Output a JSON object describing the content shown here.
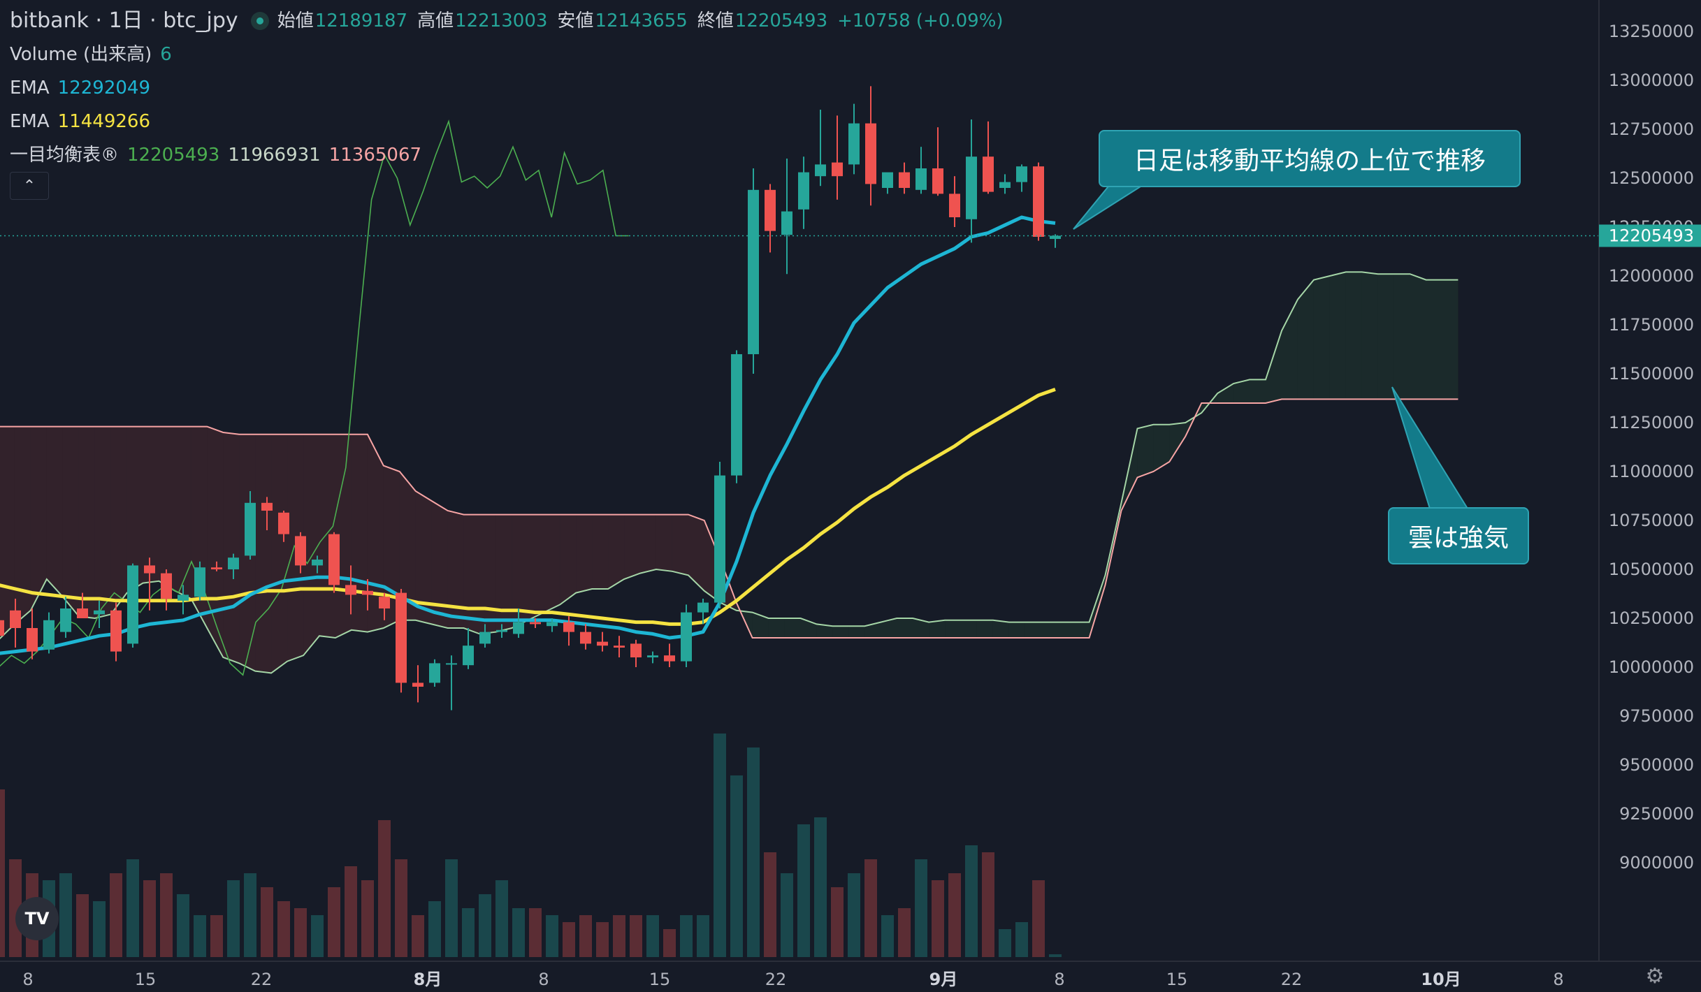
{
  "header": {
    "symbol": "bitbank · 1日 · btc_jpy",
    "open_label": "始値",
    "open": "12189187",
    "high_label": "高値",
    "high": "12213003",
    "low_label": "安値",
    "low": "12143655",
    "close_label": "終値",
    "close": "12205493",
    "change": "+10758 (+0.09%)"
  },
  "indicators": {
    "volume_label": "Volume (出来高)",
    "volume_value": "6",
    "ema1_label": "EMA",
    "ema1_value": "12292049",
    "ema2_label": "EMA",
    "ema2_value": "11449266",
    "ichimoku_label": "一目均衡表®",
    "ichimoku_v1": "12205493",
    "ichimoku_v2": "11966931",
    "ichimoku_v3": "11365067",
    "collapse_icon": "chevron-up-icon"
  },
  "annotations": {
    "callout1": "日足は移動平均線の上位で推移",
    "callout2": "雲は強気"
  },
  "logo_text": "TV",
  "colors": {
    "background": "#161b27",
    "up": "#26a69a",
    "down": "#ef5350",
    "ema_fast": "#1eb6d4",
    "ema_slow": "#f5e342",
    "lagging_span": "#4caf50",
    "leading_a": "#a5d6a7",
    "leading_b": "#f8a5a5",
    "callout": "#137b8a"
  },
  "chart_data": {
    "type": "candlestick",
    "y_range": [
      8850000,
      13350000
    ],
    "y_ticks": [
      "13250000",
      "13000000",
      "12750000",
      "12500000",
      "12250000",
      "12000000",
      "11750000",
      "11500000",
      "11250000",
      "11000000",
      "10750000",
      "10500000",
      "10250000",
      "10000000",
      "9750000",
      "9500000",
      "9250000",
      "9000000"
    ],
    "last_price_label": "12205493",
    "last_price": 12205493,
    "x_labels": [
      "8",
      "15",
      "22",
      "8月",
      "8",
      "15",
      "22",
      "9月",
      "8",
      "15",
      "22",
      "10月",
      "8"
    ],
    "candles": [
      {
        "o": 10240000,
        "h": 10280000,
        "l": 10140000,
        "c": 10160000
      },
      {
        "o": 10290000,
        "h": 10350000,
        "l": 10100000,
        "c": 10200000
      },
      {
        "o": 10200000,
        "h": 10300000,
        "l": 10040000,
        "c": 10080000
      },
      {
        "o": 10090000,
        "h": 10280000,
        "l": 10070000,
        "c": 10240000
      },
      {
        "o": 10180000,
        "h": 10360000,
        "l": 10150000,
        "c": 10300000
      },
      {
        "o": 10300000,
        "h": 10380000,
        "l": 10250000,
        "c": 10250000
      },
      {
        "o": 10270000,
        "h": 10340000,
        "l": 10200000,
        "c": 10290000
      },
      {
        "o": 10290000,
        "h": 10330000,
        "l": 10030000,
        "c": 10080000
      },
      {
        "o": 10120000,
        "h": 10530000,
        "l": 10100000,
        "c": 10520000
      },
      {
        "o": 10520000,
        "h": 10560000,
        "l": 10290000,
        "c": 10480000
      },
      {
        "o": 10480000,
        "h": 10500000,
        "l": 10290000,
        "c": 10350000
      },
      {
        "o": 10340000,
        "h": 10420000,
        "l": 10270000,
        "c": 10370000
      },
      {
        "o": 10360000,
        "h": 10540000,
        "l": 10340000,
        "c": 10510000
      },
      {
        "o": 10510000,
        "h": 10540000,
        "l": 10490000,
        "c": 10500000
      },
      {
        "o": 10500000,
        "h": 10580000,
        "l": 10450000,
        "c": 10560000
      },
      {
        "o": 10570000,
        "h": 10900000,
        "l": 10550000,
        "c": 10840000
      },
      {
        "o": 10840000,
        "h": 10870000,
        "l": 10700000,
        "c": 10800000
      },
      {
        "o": 10790000,
        "h": 10800000,
        "l": 10640000,
        "c": 10680000
      },
      {
        "o": 10670000,
        "h": 10690000,
        "l": 10480000,
        "c": 10520000
      },
      {
        "o": 10520000,
        "h": 10570000,
        "l": 10480000,
        "c": 10550000
      },
      {
        "o": 10680000,
        "h": 10690000,
        "l": 10380000,
        "c": 10420000
      },
      {
        "o": 10420000,
        "h": 10520000,
        "l": 10270000,
        "c": 10370000
      },
      {
        "o": 10390000,
        "h": 10450000,
        "l": 10290000,
        "c": 10370000
      },
      {
        "o": 10360000,
        "h": 10380000,
        "l": 10240000,
        "c": 10300000
      },
      {
        "o": 10380000,
        "h": 10400000,
        "l": 9870000,
        "c": 9920000
      },
      {
        "o": 9920000,
        "h": 10010000,
        "l": 9820000,
        "c": 9900000
      },
      {
        "o": 9920000,
        "h": 10040000,
        "l": 9900000,
        "c": 10020000
      },
      {
        "o": 10020000,
        "h": 10060000,
        "l": 9780000,
        "c": 10020000
      },
      {
        "o": 10010000,
        "h": 10200000,
        "l": 9990000,
        "c": 10110000
      },
      {
        "o": 10120000,
        "h": 10220000,
        "l": 10100000,
        "c": 10180000
      },
      {
        "o": 10180000,
        "h": 10220000,
        "l": 10150000,
        "c": 10190000
      },
      {
        "o": 10170000,
        "h": 10300000,
        "l": 10150000,
        "c": 10230000
      },
      {
        "o": 10230000,
        "h": 10250000,
        "l": 10200000,
        "c": 10220000
      },
      {
        "o": 10210000,
        "h": 10250000,
        "l": 10180000,
        "c": 10230000
      },
      {
        "o": 10230000,
        "h": 10260000,
        "l": 10110000,
        "c": 10180000
      },
      {
        "o": 10180000,
        "h": 10220000,
        "l": 10090000,
        "c": 10120000
      },
      {
        "o": 10130000,
        "h": 10180000,
        "l": 10080000,
        "c": 10110000
      },
      {
        "o": 10110000,
        "h": 10160000,
        "l": 10050000,
        "c": 10100000
      },
      {
        "o": 10120000,
        "h": 10140000,
        "l": 10000000,
        "c": 10050000
      },
      {
        "o": 10050000,
        "h": 10080000,
        "l": 10020000,
        "c": 10060000
      },
      {
        "o": 10060000,
        "h": 10120000,
        "l": 10000000,
        "c": 10030000
      },
      {
        "o": 10030000,
        "h": 10320000,
        "l": 10000000,
        "c": 10280000
      },
      {
        "o": 10280000,
        "h": 10350000,
        "l": 10220000,
        "c": 10330000
      },
      {
        "o": 10330000,
        "h": 11050000,
        "l": 10300000,
        "c": 10980000
      },
      {
        "o": 10980000,
        "h": 11620000,
        "l": 10940000,
        "c": 11600000
      },
      {
        "o": 11600000,
        "h": 12550000,
        "l": 11500000,
        "c": 12440000
      },
      {
        "o": 12440000,
        "h": 12470000,
        "l": 12120000,
        "c": 12230000
      },
      {
        "o": 12210000,
        "h": 12600000,
        "l": 12010000,
        "c": 12330000
      },
      {
        "o": 12340000,
        "h": 12610000,
        "l": 12240000,
        "c": 12530000
      },
      {
        "o": 12510000,
        "h": 12850000,
        "l": 12460000,
        "c": 12570000
      },
      {
        "o": 12580000,
        "h": 12820000,
        "l": 12390000,
        "c": 12510000
      },
      {
        "o": 12570000,
        "h": 12880000,
        "l": 12520000,
        "c": 12780000
      },
      {
        "o": 12780000,
        "h": 12970000,
        "l": 12360000,
        "c": 12470000
      },
      {
        "o": 12450000,
        "h": 12520000,
        "l": 12420000,
        "c": 12530000
      },
      {
        "o": 12530000,
        "h": 12580000,
        "l": 12420000,
        "c": 12450000
      },
      {
        "o": 12440000,
        "h": 12660000,
        "l": 12420000,
        "c": 12550000
      },
      {
        "o": 12550000,
        "h": 12760000,
        "l": 12410000,
        "c": 12420000
      },
      {
        "o": 12420000,
        "h": 12510000,
        "l": 12250000,
        "c": 12300000
      },
      {
        "o": 12290000,
        "h": 12800000,
        "l": 12170000,
        "c": 12610000
      },
      {
        "o": 12610000,
        "h": 12790000,
        "l": 12420000,
        "c": 12430000
      },
      {
        "o": 12450000,
        "h": 12520000,
        "l": 12420000,
        "c": 12480000
      },
      {
        "o": 12480000,
        "h": 12570000,
        "l": 12430000,
        "c": 12560000
      },
      {
        "o": 12560000,
        "h": 12580000,
        "l": 12180000,
        "c": 12200000
      },
      {
        "o": 12189187,
        "h": 12213003,
        "l": 12143655,
        "c": 12205493
      }
    ],
    "volumes": [
      1.2,
      0.7,
      0.6,
      0.55,
      0.6,
      0.45,
      0.4,
      0.6,
      0.7,
      0.55,
      0.6,
      0.45,
      0.3,
      0.3,
      0.55,
      0.6,
      0.5,
      0.4,
      0.35,
      0.3,
      0.5,
      0.65,
      0.55,
      0.98,
      0.7,
      0.3,
      0.4,
      0.7,
      0.35,
      0.45,
      0.55,
      0.35,
      0.35,
      0.3,
      0.25,
      0.3,
      0.25,
      0.3,
      0.3,
      0.3,
      0.2,
      0.3,
      0.3,
      1.6,
      1.3,
      1.5,
      0.75,
      0.6,
      0.95,
      1.0,
      0.5,
      0.6,
      0.7,
      0.3,
      0.35,
      0.7,
      0.55,
      0.6,
      0.8,
      0.75,
      0.2,
      0.25,
      0.55,
      0.02
    ],
    "ema_fast": [
      10070000,
      10080000,
      10090000,
      10100000,
      10120000,
      10140000,
      10160000,
      10170000,
      10200000,
      10220000,
      10230000,
      10240000,
      10270000,
      10290000,
      10310000,
      10370000,
      10410000,
      10440000,
      10450000,
      10460000,
      10460000,
      10450000,
      10430000,
      10410000,
      10360000,
      10310000,
      10280000,
      10260000,
      10250000,
      10240000,
      10240000,
      10240000,
      10240000,
      10240000,
      10230000,
      10220000,
      10210000,
      10200000,
      10180000,
      10170000,
      10150000,
      10160000,
      10180000,
      10330000,
      10540000,
      10790000,
      10980000,
      11140000,
      11310000,
      11470000,
      11600000,
      11760000,
      11850000,
      11940000,
      12000000,
      12060000,
      12100000,
      12140000,
      12200000,
      12220000,
      12260000,
      12300000,
      12280000,
      12270000
    ],
    "ema_slow": [
      10420000,
      10400000,
      10380000,
      10370000,
      10360000,
      10350000,
      10350000,
      10340000,
      10340000,
      10340000,
      10340000,
      10340000,
      10350000,
      10350000,
      10360000,
      10380000,
      10390000,
      10390000,
      10400000,
      10400000,
      10400000,
      10390000,
      10380000,
      10370000,
      10350000,
      10330000,
      10320000,
      10310000,
      10300000,
      10300000,
      10290000,
      10290000,
      10280000,
      10280000,
      10270000,
      10260000,
      10250000,
      10240000,
      10230000,
      10230000,
      10220000,
      10220000,
      10230000,
      10280000,
      10340000,
      10410000,
      10480000,
      10550000,
      10610000,
      10680000,
      10740000,
      10810000,
      10870000,
      10920000,
      10980000,
      11030000,
      11080000,
      11130000,
      11190000,
      11240000,
      11290000,
      11340000,
      11390000,
      11420000
    ],
    "lagging_span": [
      10000000,
      10060000,
      10020000,
      10080000,
      10160000,
      10250000,
      10220000,
      10150000,
      10300000,
      10380000,
      10330000,
      10280000,
      10370000,
      10420000,
      10380000,
      10540000,
      10390000,
      10200000,
      10020000,
      9960000,
      10230000,
      10300000,
      10400000,
      10620000,
      10530000,
      10640000,
      10720000,
      11020000,
      11720000,
      12390000,
      12620000,
      12500000,
      12260000,
      12430000,
      12620000,
      12790000,
      12480000,
      12510000,
      12450000,
      12510000,
      12660000,
      12490000,
      12540000,
      12300000,
      12630000,
      12470000,
      12490000,
      12540000,
      12205493,
      12205493
    ],
    "leading_a": [
      10140000,
      10220000,
      10290000,
      10450000,
      10360000,
      10260000,
      10250000,
      10270000,
      10380000,
      10430000,
      10440000,
      10390000,
      10350000,
      10200000,
      10050000,
      10020000,
      9980000,
      9970000,
      10030000,
      10060000,
      10160000,
      10150000,
      10190000,
      10180000,
      10200000,
      10240000,
      10240000,
      10220000,
      10200000,
      10200000,
      10170000,
      10180000,
      10200000,
      10240000,
      10280000,
      10320000,
      10380000,
      10400000,
      10400000,
      10450000,
      10480000,
      10500000,
      10490000,
      10470000,
      10390000,
      10330000,
      10290000,
      10280000,
      10250000,
      10250000,
      10250000,
      10220000,
      10210000,
      10210000,
      10210000,
      10230000,
      10250000,
      10250000,
      10230000,
      10240000,
      10240000,
      10240000,
      10240000,
      10230000,
      10230000,
      10230000,
      10230000,
      10230000,
      10230000,
      10470000,
      10840000,
      11220000,
      11240000,
      11240000,
      11250000,
      11300000,
      11400000,
      11450000,
      11470000,
      11470000,
      11720000,
      11880000,
      11980000,
      12000000,
      12020000,
      12020000,
      12010000,
      12010000,
      12010000,
      11980000,
      11980000,
      11980000
    ],
    "leading_b": [
      11230000,
      11230000,
      11230000,
      11230000,
      11230000,
      11230000,
      11230000,
      11230000,
      11230000,
      11230000,
      11230000,
      11230000,
      11230000,
      11230000,
      11200000,
      11190000,
      11190000,
      11190000,
      11190000,
      11190000,
      11190000,
      11190000,
      11190000,
      11190000,
      11030000,
      11000000,
      10900000,
      10850000,
      10800000,
      10780000,
      10780000,
      10780000,
      10780000,
      10780000,
      10780000,
      10780000,
      10780000,
      10780000,
      10780000,
      10780000,
      10780000,
      10780000,
      10780000,
      10780000,
      10750000,
      10550000,
      10330000,
      10150000,
      10150000,
      10150000,
      10150000,
      10150000,
      10150000,
      10150000,
      10150000,
      10150000,
      10150000,
      10150000,
      10150000,
      10150000,
      10150000,
      10150000,
      10150000,
      10150000,
      10150000,
      10150000,
      10150000,
      10150000,
      10150000,
      10420000,
      10800000,
      10970000,
      11000000,
      11050000,
      11180000,
      11350000,
      11350000,
      11350000,
      11350000,
      11350000,
      11370000,
      11370000,
      11370000,
      11370000,
      11370000,
      11370000,
      11370000,
      11370000,
      11370000,
      11370000,
      11370000,
      11370000
    ]
  }
}
